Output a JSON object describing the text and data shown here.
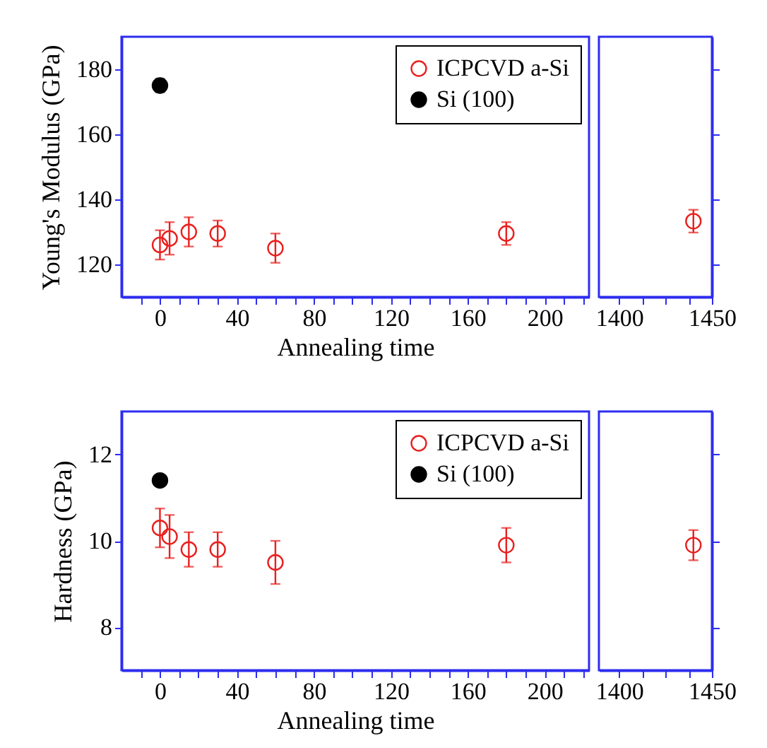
{
  "chart_data": [
    {
      "type": "scatter",
      "xlabel": "Annealing time",
      "ylabel": "Young's Modulus (GPa)",
      "xlim": [
        -20,
        223
      ],
      "xticks": [
        {
          "value": -10,
          "label": null
        },
        0,
        {
          "value": 10,
          "label": null
        },
        {
          "value": 20,
          "label": null
        },
        {
          "value": 30,
          "label": null
        },
        40,
        {
          "value": 50,
          "label": null
        },
        {
          "value": 60,
          "label": null
        },
        {
          "value": 70,
          "label": null
        },
        80,
        {
          "value": 90,
          "label": null
        },
        {
          "value": 100,
          "label": null
        },
        {
          "value": 110,
          "label": null
        },
        120,
        {
          "value": 130,
          "label": null
        },
        {
          "value": 140,
          "label": null
        },
        {
          "value": 150,
          "label": null
        },
        160,
        {
          "value": 170,
          "label": null
        },
        {
          "value": 180,
          "label": null
        },
        {
          "value": 190,
          "label": null
        },
        200,
        {
          "value": 210,
          "label": null
        },
        {
          "value": 220,
          "label": null
        }
      ],
      "ylim": [
        110,
        190
      ],
      "yticks": [
        120,
        140,
        160,
        180
      ],
      "legend": "top right",
      "marker": "circle",
      "series": [
        {
          "name": "ICPCVD a-Si",
          "color": "#e8201e",
          "x": [
            0,
            5,
            15,
            30,
            60,
            180
          ],
          "values": [
            126,
            128,
            130,
            129.5,
            125,
            129.5
          ],
          "errors": [
            4.5,
            5,
            4.5,
            4,
            4.5,
            3.5
          ]
        },
        {
          "name": "Si (100)",
          "color": "#000000",
          "x": [
            0
          ],
          "values": [
            175
          ],
          "errors": [
            2
          ]
        }
      ]
    },
    {
      "type": "scatter",
      "xlim": [
        1389,
        1450
      ],
      "xticks": [
        1400,
        {
          "value": 1412.5,
          "label": null
        },
        {
          "value": 1425,
          "label": null
        },
        {
          "value": 1437.5,
          "label": null
        },
        1450
      ],
      "ylim": [
        110,
        190
      ],
      "yticks": [
        120,
        140,
        160,
        180
      ],
      "tick_labels": "x",
      "marker": "circle",
      "series": [
        {
          "color": "#e8201e",
          "x": [
            1440
          ],
          "values": [
            133.3
          ],
          "errors": [
            3.5
          ]
        }
      ]
    },
    {
      "type": "scatter",
      "xlabel": "Annealing time",
      "ylabel": "Hardness (GPa)",
      "xlim": [
        -20,
        223
      ],
      "xticks": [
        {
          "value": -10,
          "label": null
        },
        0,
        {
          "value": 10,
          "label": null
        },
        {
          "value": 20,
          "label": null
        },
        {
          "value": 30,
          "label": null
        },
        40,
        {
          "value": 50,
          "label": null
        },
        {
          "value": 60,
          "label": null
        },
        {
          "value": 70,
          "label": null
        },
        80,
        {
          "value": 90,
          "label": null
        },
        {
          "value": 100,
          "label": null
        },
        {
          "value": 110,
          "label": null
        },
        120,
        {
          "value": 130,
          "label": null
        },
        {
          "value": 140,
          "label": null
        },
        {
          "value": 150,
          "label": null
        },
        160,
        {
          "value": 170,
          "label": null
        },
        {
          "value": 180,
          "label": null
        },
        {
          "value": 190,
          "label": null
        },
        200,
        {
          "value": 210,
          "label": null
        },
        {
          "value": 220,
          "label": null
        }
      ],
      "ylim": [
        7,
        13
      ],
      "yticks": [
        8,
        10,
        12
      ],
      "legend": "top right",
      "marker": "circle",
      "series": [
        {
          "name": "ICPCVD a-Si",
          "color": "#e8201e",
          "x": [
            0,
            5,
            15,
            30,
            60,
            180
          ],
          "values": [
            10.3,
            10.1,
            9.8,
            9.8,
            9.5,
            9.9
          ],
          "errors": [
            0.45,
            0.5,
            0.4,
            0.4,
            0.5,
            0.4
          ]
        },
        {
          "name": "Si (100)",
          "color": "#000000",
          "x": [
            0
          ],
          "values": [
            11.4
          ],
          "errors": [
            0.12
          ]
        }
      ]
    },
    {
      "type": "scatter",
      "xlim": [
        1389,
        1450
      ],
      "xticks": [
        1400,
        {
          "value": 1412.5,
          "label": null
        },
        {
          "value": 1425,
          "label": null
        },
        {
          "value": 1437.5,
          "label": null
        },
        1450
      ],
      "ylim": [
        7,
        13
      ],
      "yticks": [
        8,
        10,
        12
      ],
      "tick_labels": "x",
      "marker": "circle",
      "series": [
        {
          "color": "#e8201e",
          "x": [
            1440
          ],
          "values": [
            9.9
          ],
          "errors": [
            0.35
          ]
        }
      ]
    }
  ]
}
